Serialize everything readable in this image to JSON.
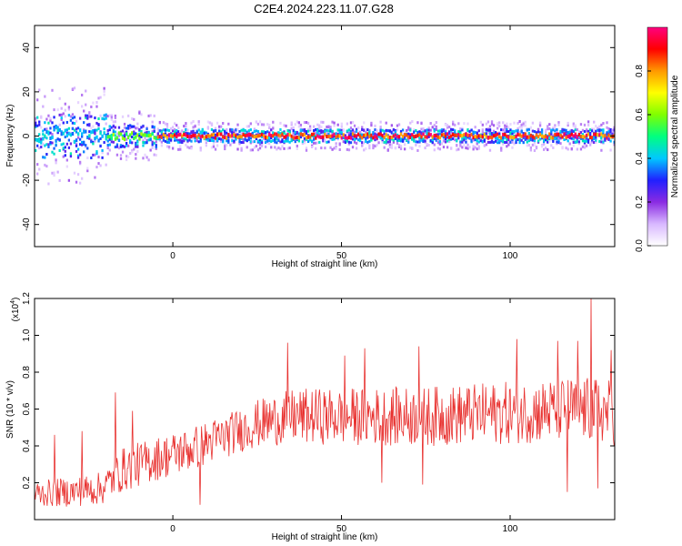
{
  "figure": {
    "title": "C2E4.2024.223.11.07.G28"
  },
  "chart_data": [
    {
      "type": "heatmap",
      "xlabel": "Height of straight line (km)",
      "ylabel": "Frequency (Hz)",
      "xlim": [
        -41,
        131
      ],
      "ylim": [
        -50,
        50
      ],
      "xticks": [
        0,
        50,
        100
      ],
      "yticks": [
        -40,
        -20,
        0,
        20,
        40
      ],
      "colorbar": {
        "label": "Normalized spectral amplitude",
        "range": [
          0,
          1
        ],
        "ticks": [
          "0.0",
          "0.2",
          "0.4",
          "0.6",
          "0.8"
        ],
        "colormap": [
          "#ffffff",
          "#d8b8ff",
          "#8a2be2",
          "#2020ff",
          "#00c8ff",
          "#00ff80",
          "#80ff00",
          "#ffff00",
          "#ff9900",
          "#ff0000",
          "#ff0080"
        ]
      },
      "ridge": {
        "description_free": true,
        "center_hz": 0,
        "segments": [
          {
            "x0": -41,
            "x1": -20,
            "spread_hz": 10,
            "peak": 0.45
          },
          {
            "x0": -20,
            "x1": -5,
            "spread_hz": 5,
            "peak": 0.65
          },
          {
            "x0": -5,
            "x1": 131,
            "spread_hz": 3,
            "peak": 1.0
          }
        ]
      }
    },
    {
      "type": "line",
      "xlabel": "Height of straight line (km)",
      "ylabel": "SNR (10 * v/v)",
      "y_multiplier": "(x10",
      "y_multiplier_exp": "4",
      "y_multiplier_close": ")",
      "xlim": [
        -41,
        131
      ],
      "ylim": [
        0,
        1.2
      ],
      "xticks": [
        0,
        50,
        100
      ],
      "yticks": [
        0.2,
        0.4,
        0.6,
        0.8,
        1.0,
        1.2
      ],
      "series": [
        {
          "color": "#e8312f",
          "trend": [
            [
              -41,
              0.14
            ],
            [
              -30,
              0.15
            ],
            [
              -21,
              0.17
            ],
            [
              -15,
              0.27
            ],
            [
              -5,
              0.33
            ],
            [
              5,
              0.38
            ],
            [
              15,
              0.45
            ],
            [
              25,
              0.52
            ],
            [
              35,
              0.56
            ],
            [
              50,
              0.56
            ],
            [
              75,
              0.56
            ],
            [
              100,
              0.58
            ],
            [
              120,
              0.6
            ],
            [
              131,
              0.58
            ]
          ],
          "spread": [
            [
              -41,
              0.07
            ],
            [
              -20,
              0.09
            ],
            [
              -15,
              0.12
            ],
            [
              20,
              0.12
            ],
            [
              35,
              0.15
            ],
            [
              131,
              0.18
            ]
          ],
          "peaks": [
            [
              -42,
              0.26
            ],
            [
              -35,
              0.46
            ],
            [
              -27,
              0.48
            ],
            [
              -17,
              0.69
            ],
            [
              -12,
              0.59
            ],
            [
              34,
              0.96
            ],
            [
              51,
              0.89
            ],
            [
              57,
              0.93
            ],
            [
              73,
              0.94
            ],
            [
              102,
              0.98
            ],
            [
              114,
              0.97
            ],
            [
              120,
              0.97
            ],
            [
              124,
              1.21
            ],
            [
              130,
              0.92
            ]
          ],
          "troughs": [
            [
              8,
              0.08
            ],
            [
              62,
              0.2
            ],
            [
              74,
              0.19
            ],
            [
              117,
              0.15
            ],
            [
              126,
              0.17
            ]
          ]
        }
      ]
    }
  ]
}
